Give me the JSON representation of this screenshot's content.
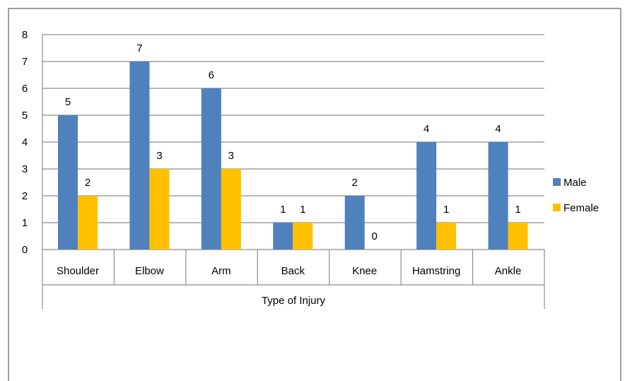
{
  "chart_data": {
    "type": "bar",
    "title": "",
    "xlabel": "Type of Injury",
    "ylabel": "",
    "categories": [
      "Shoulder",
      "Elbow",
      "Arm",
      "Back",
      "Knee",
      "Hamstring",
      "Ankle"
    ],
    "series": [
      {
        "name": "Male",
        "color": "#4F81BD",
        "values": [
          5,
          7,
          6,
          1,
          2,
          4,
          4
        ]
      },
      {
        "name": "Female",
        "color": "#FFC000",
        "values": [
          2,
          3,
          3,
          1,
          0,
          1,
          1
        ]
      }
    ],
    "ylim": [
      0,
      8
    ],
    "yticks": [
      0,
      1,
      2,
      3,
      4,
      5,
      6,
      7,
      8
    ],
    "grid": true,
    "legend": "right",
    "data_labels": true
  }
}
